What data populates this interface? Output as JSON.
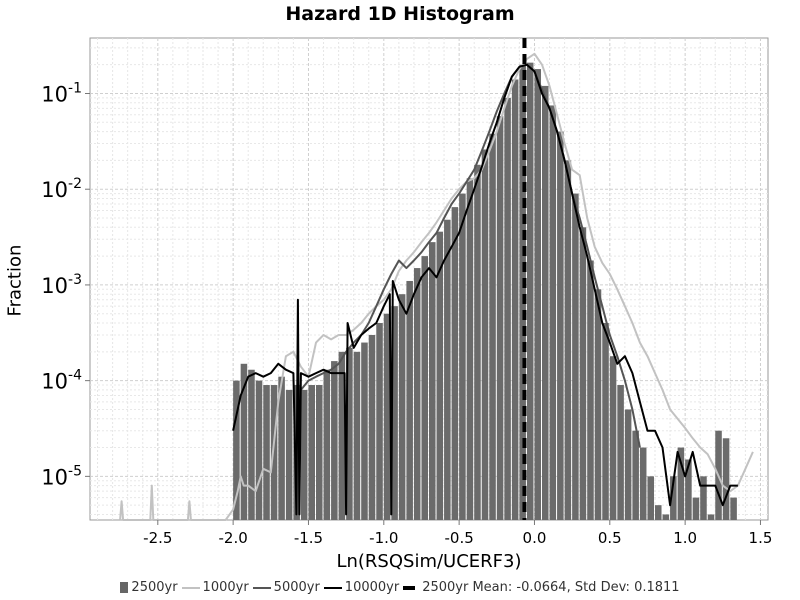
{
  "chart_data": {
    "type": "histogram",
    "title": "Hazard 1D Histogram",
    "xlabel": "Ln(RSQSim/UCERF3)",
    "ylabel": "Fraction",
    "xlim": [
      -2.95,
      1.55
    ],
    "ylim": [
      3.5e-06,
      0.38
    ],
    "y_scale": "log",
    "grid": true,
    "legend_position": "bottom",
    "x_ticks": [
      -2.5,
      -2.0,
      -1.5,
      -1.0,
      -0.5,
      0.0,
      0.5,
      1.0,
      1.5
    ],
    "x_tick_labels": [
      "-2.5",
      "-2.0",
      "-1.5",
      "-1.0",
      "-0.5",
      "0.0",
      "0.5",
      "1.0",
      "1.5"
    ],
    "y_ticks": [
      1e-05,
      0.0001,
      0.001,
      0.01,
      0.1
    ],
    "y_tick_labels": [
      {
        "base": "10",
        "exp": "-5"
      },
      {
        "base": "10",
        "exp": "-4"
      },
      {
        "base": "10",
        "exp": "-3"
      },
      {
        "base": "10",
        "exp": "-2"
      },
      {
        "base": "10",
        "exp": "-1"
      }
    ],
    "bin_width": 0.05,
    "series": [
      {
        "name": "2500yr",
        "kind": "bar",
        "color": "#6b6b6b",
        "x": [
          -2.0,
          -1.95,
          -1.9,
          -1.85,
          -1.8,
          -1.75,
          -1.7,
          -1.65,
          -1.6,
          -1.55,
          -1.5,
          -1.45,
          -1.4,
          -1.35,
          -1.3,
          -1.25,
          -1.2,
          -1.15,
          -1.1,
          -1.05,
          -1.0,
          -0.95,
          -0.9,
          -0.85,
          -0.8,
          -0.75,
          -0.7,
          -0.65,
          -0.6,
          -0.55,
          -0.5,
          -0.45,
          -0.4,
          -0.35,
          -0.3,
          -0.25,
          -0.2,
          -0.15,
          -0.1,
          -0.05,
          0.0,
          0.05,
          0.1,
          0.15,
          0.2,
          0.25,
          0.3,
          0.35,
          0.4,
          0.45,
          0.5,
          0.55,
          0.6,
          0.65,
          0.7,
          0.75,
          0.8,
          0.85,
          0.9,
          0.95,
          1.0,
          1.05,
          1.1,
          1.15,
          1.2,
          1.25,
          1.3
        ],
        "values": [
          0.0001,
          0.00015,
          0.00013,
          0.0001,
          9e-05,
          9e-05,
          0.00011,
          8e-05,
          9e-05,
          8e-05,
          9e-05,
          9e-05,
          0.00013,
          0.00016,
          0.0002,
          0.00022,
          0.0002,
          0.00025,
          0.0003,
          0.0004,
          0.0005,
          0.0006,
          0.0008,
          0.0011,
          0.0015,
          0.002,
          0.0028,
          0.0036,
          0.0048,
          0.0065,
          0.009,
          0.013,
          0.018,
          0.026,
          0.038,
          0.058,
          0.09,
          0.14,
          0.2,
          0.21,
          0.18,
          0.12,
          0.075,
          0.04,
          0.02,
          0.009,
          0.004,
          0.0018,
          0.0009,
          0.0004,
          0.00018,
          9e-05,
          5e-05,
          3e-05,
          2e-05,
          1e-05,
          5e-06,
          4e-06,
          1e-05,
          2e-05,
          1.5e-05,
          6e-06,
          1e-05,
          4e-06,
          3e-05,
          2.5e-05,
          6e-06
        ]
      },
      {
        "name": "1000yr",
        "kind": "line",
        "color": "#c2c2c2",
        "x": [
          -2.75,
          -2.74,
          -2.73,
          -2.6,
          -2.55,
          -2.54,
          -2.53,
          -2.3,
          -2.29,
          -2.28,
          -2.05,
          -2.0,
          -1.97,
          -1.95,
          -1.93,
          -1.9,
          -1.85,
          -1.8,
          -1.75,
          -1.7,
          -1.65,
          -1.6,
          -1.55,
          -1.5,
          -1.45,
          -1.4,
          -1.35,
          -1.3,
          -1.25,
          -1.2,
          -1.15,
          -1.1,
          -1.05,
          -1.0,
          -0.95,
          -0.9,
          -0.85,
          -0.8,
          -0.75,
          -0.7,
          -0.65,
          -0.6,
          -0.55,
          -0.5,
          -0.45,
          -0.4,
          -0.35,
          -0.3,
          -0.25,
          -0.2,
          -0.15,
          -0.1,
          -0.05,
          0.0,
          0.05,
          0.1,
          0.15,
          0.2,
          0.25,
          0.3,
          0.35,
          0.4,
          0.45,
          0.5,
          0.55,
          0.6,
          0.65,
          0.7,
          0.75,
          0.8,
          0.85,
          0.9,
          0.95,
          1.0,
          1.05,
          1.1,
          1.15,
          1.2,
          1.25,
          1.3,
          1.35,
          1.4,
          1.45
        ],
        "values": [
          3.5e-06,
          5.5e-06,
          3.5e-06,
          3.5e-06,
          3.5e-06,
          8e-06,
          3.5e-06,
          3.5e-06,
          5.5e-06,
          3.5e-06,
          3.5e-06,
          4.5e-06,
          7e-06,
          1e-05,
          8e-06,
          8e-06,
          7e-06,
          1.2e-05,
          1.1e-05,
          6e-05,
          0.00018,
          0.0002,
          0.00014,
          0.00011,
          0.00025,
          0.0003,
          0.00027,
          0.0003,
          0.0003,
          0.00034,
          0.0004,
          0.0005,
          0.0006,
          0.0007,
          0.0009,
          0.0014,
          0.0018,
          0.0022,
          0.0028,
          0.0035,
          0.0045,
          0.006,
          0.008,
          0.01,
          0.012,
          0.013,
          0.016,
          0.025,
          0.04,
          0.07,
          0.12,
          0.18,
          0.23,
          0.26,
          0.2,
          0.12,
          0.06,
          0.03,
          0.016,
          0.014,
          0.005,
          0.0025,
          0.0017,
          0.0013,
          0.0009,
          0.0006,
          0.0004,
          0.00025,
          0.00018,
          0.00012,
          8e-05,
          5e-05,
          4e-05,
          3.2e-05,
          2.5e-05,
          2e-05,
          1.7e-05,
          1.2e-05,
          8e-06,
          7e-06,
          8e-06,
          1.2e-05,
          1.8e-05
        ]
      },
      {
        "name": "5000yr",
        "kind": "line",
        "color": "#555555",
        "x": [
          -1.55,
          -1.5,
          -1.45,
          -1.4,
          -1.35,
          -1.3,
          -1.25,
          -1.2,
          -1.15,
          -1.1,
          -1.05,
          -1.0,
          -0.95,
          -0.9,
          -0.85,
          -0.8,
          -0.75,
          -0.7,
          -0.65,
          -0.6,
          -0.55,
          -0.5,
          -0.45,
          -0.4,
          -0.35,
          -0.3,
          -0.25,
          -0.2,
          -0.15,
          -0.1,
          -0.05,
          0.0,
          0.05,
          0.1,
          0.15,
          0.2,
          0.25,
          0.3,
          0.35,
          0.4,
          0.45,
          0.5,
          0.55,
          0.6,
          0.65,
          0.7
        ],
        "values": [
          8e-05,
          0.0001,
          0.00011,
          0.00012,
          0.00013,
          0.00015,
          0.0002,
          0.00025,
          0.0003,
          0.0004,
          0.0006,
          0.0009,
          0.0013,
          0.0018,
          0.0015,
          0.0018,
          0.0022,
          0.0028,
          0.0035,
          0.005,
          0.007,
          0.009,
          0.012,
          0.016,
          0.025,
          0.04,
          0.065,
          0.1,
          0.15,
          0.19,
          0.2,
          0.17,
          0.11,
          0.07,
          0.04,
          0.02,
          0.009,
          0.005,
          0.0025,
          0.0012,
          0.0006,
          0.0003,
          0.00018,
          0.0001,
          5e-05,
          2e-05
        ]
      },
      {
        "name": "10000yr",
        "kind": "line",
        "color": "#000000",
        "x": [
          -2.0,
          -1.95,
          -1.9,
          -1.85,
          -1.8,
          -1.75,
          -1.7,
          -1.65,
          -1.6,
          -1.58,
          -1.57,
          -1.56,
          -1.55,
          -1.5,
          -1.45,
          -1.4,
          -1.35,
          -1.3,
          -1.26,
          -1.25,
          -1.24,
          -1.2,
          -1.15,
          -1.1,
          -1.05,
          -1.0,
          -0.96,
          -0.95,
          -0.94,
          -0.9,
          -0.85,
          -0.8,
          -0.75,
          -0.7,
          -0.65,
          -0.6,
          -0.55,
          -0.5,
          -0.45,
          -0.4,
          -0.35,
          -0.3,
          -0.25,
          -0.2,
          -0.15,
          -0.1,
          -0.05,
          0.0,
          0.05,
          0.1,
          0.15,
          0.2,
          0.25,
          0.3,
          0.35,
          0.4,
          0.45,
          0.5,
          0.55,
          0.6,
          0.65,
          0.7,
          0.75,
          0.8,
          0.85,
          0.9,
          0.95,
          1.0,
          1.05,
          1.1,
          1.15,
          1.2,
          1.25,
          1.3,
          1.35
        ],
        "values": [
          3e-05,
          7e-05,
          0.00011,
          0.00012,
          0.00011,
          0.00012,
          0.00015,
          0.00013,
          0.00012,
          4e-06,
          0.0007,
          4e-06,
          0.00012,
          0.00011,
          0.00012,
          0.00013,
          0.00012,
          0.00012,
          0.00012,
          4e-06,
          0.0004,
          0.00022,
          0.0003,
          0.00035,
          0.0004,
          0.0006,
          0.0008,
          4e-06,
          0.0011,
          0.0007,
          0.0005,
          0.0008,
          0.0012,
          0.0015,
          0.0012,
          0.0018,
          0.0025,
          0.0035,
          0.006,
          0.01,
          0.017,
          0.03,
          0.05,
          0.09,
          0.15,
          0.19,
          0.2,
          0.17,
          0.1,
          0.07,
          0.04,
          0.02,
          0.009,
          0.004,
          0.002,
          0.0009,
          0.0004,
          0.00025,
          0.00015,
          0.00018,
          0.00012,
          6e-05,
          3e-05,
          3e-05,
          2e-05,
          5e-06,
          1.8e-05,
          1e-05,
          1.8e-05,
          8e-06,
          8e-06,
          8e-06,
          5e-06,
          8e-06,
          8e-06
        ]
      }
    ],
    "mean_line": {
      "label": "2500yr Mean: -0.0664, Std Dev: 0.1811",
      "x": -0.0664,
      "color": "#000000"
    }
  }
}
